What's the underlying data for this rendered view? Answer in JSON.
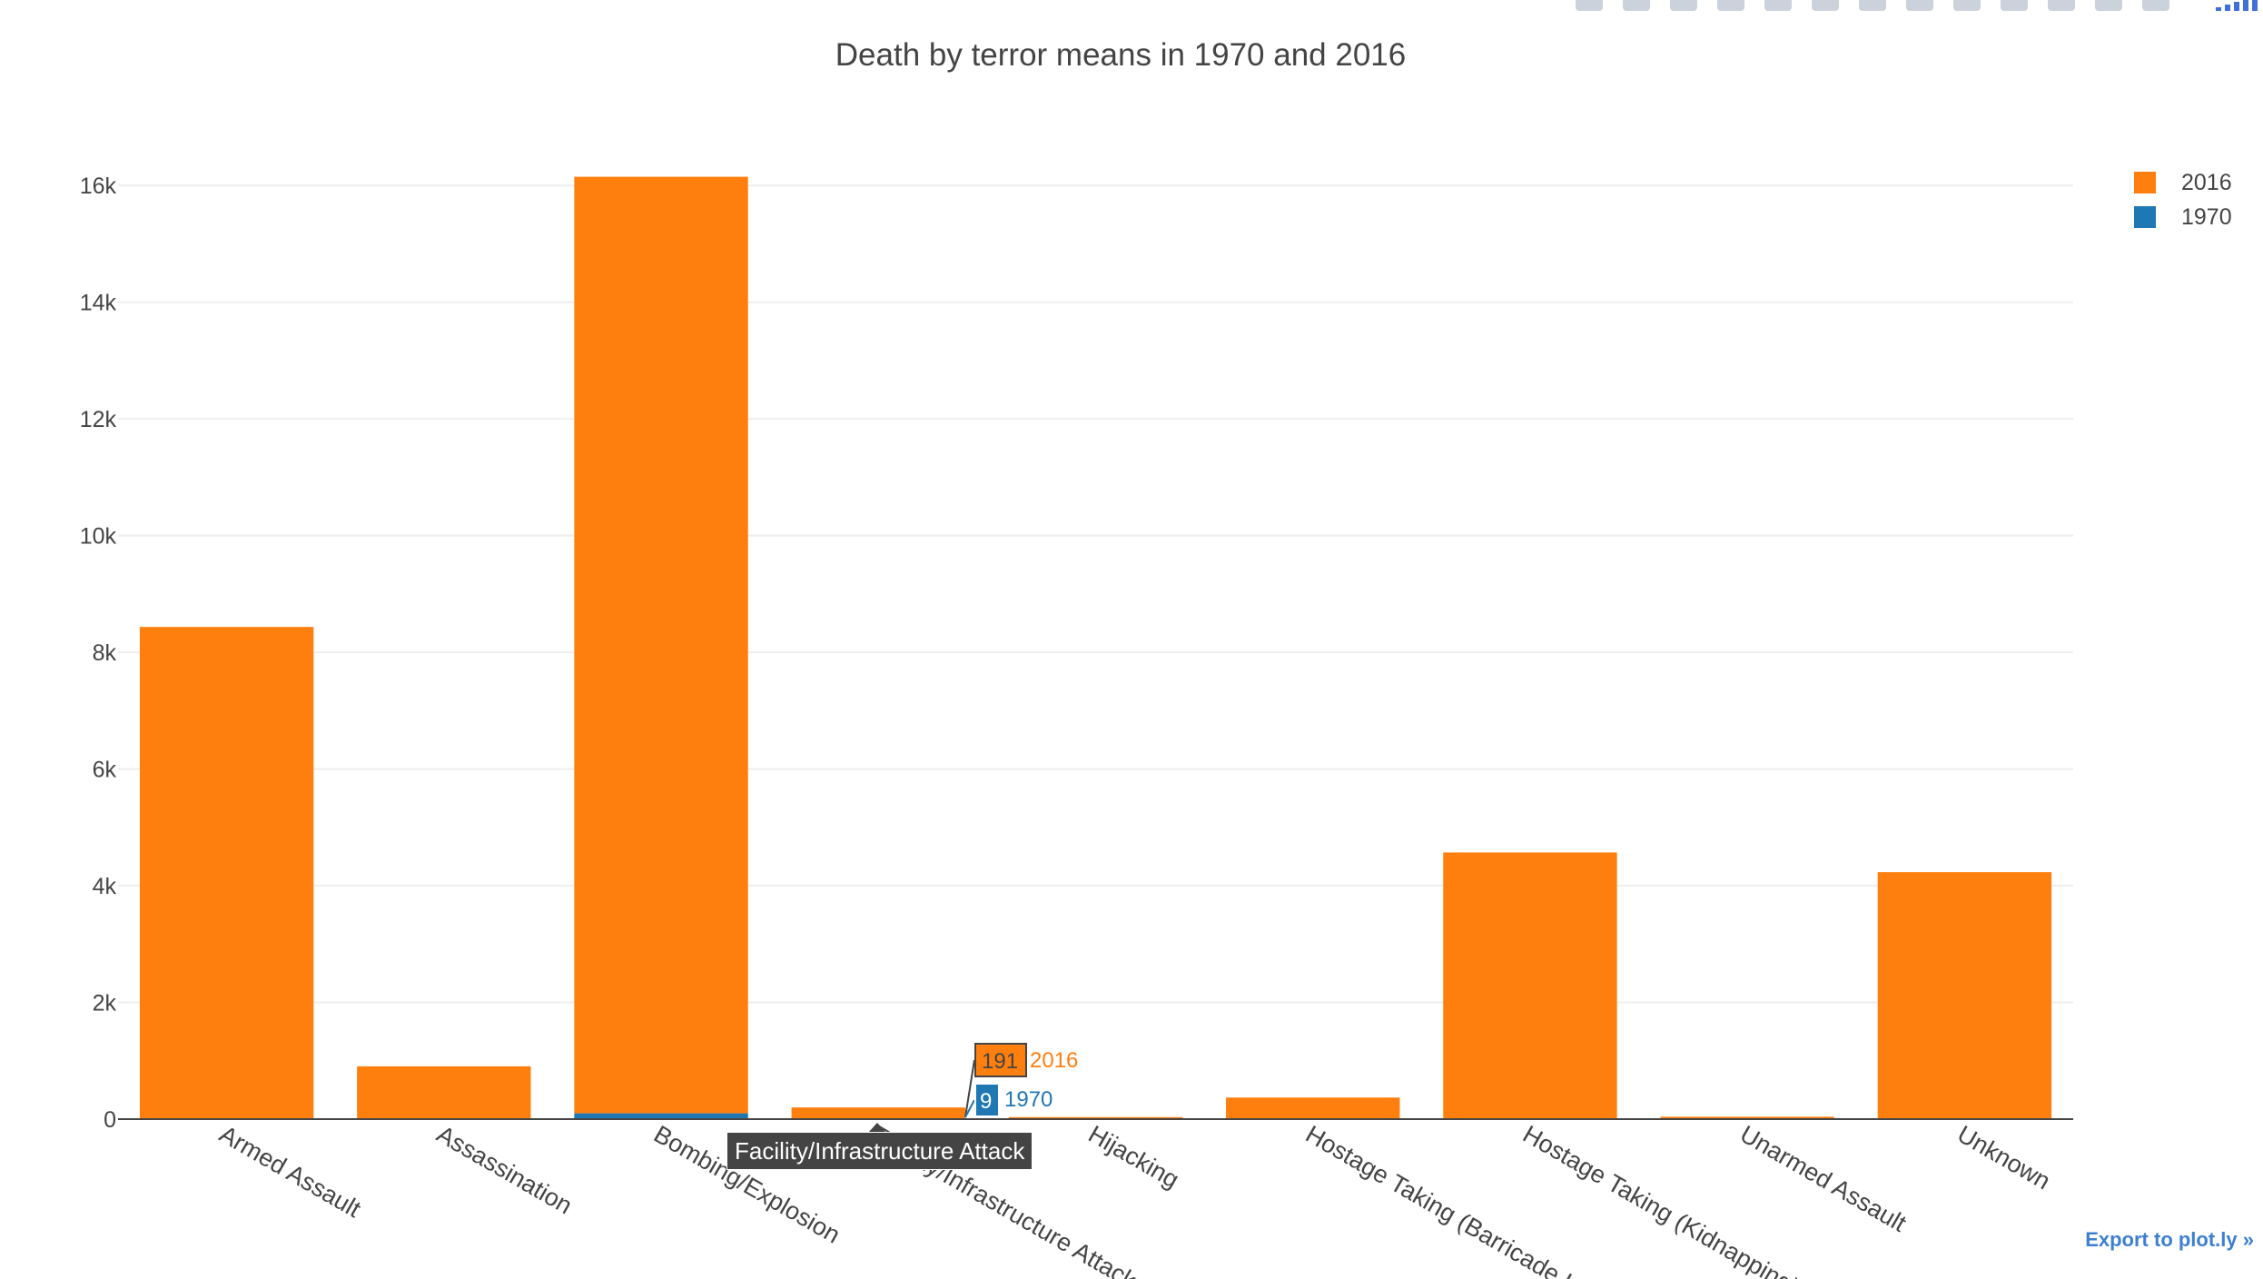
{
  "chart_data": {
    "type": "bar",
    "barmode": "stack",
    "title": "Death by terror means in 1970 and 2016",
    "xlabel": "",
    "ylabel": "",
    "categories": [
      "Armed Assault",
      "Assassination",
      "Bombing/Explosion",
      "Facility/Infrastructure Attack",
      "Hijacking",
      "Hostage Taking (Barricade Incident)",
      "Hostage Taking (Kidnapping)",
      "Unarmed Assault",
      "Unknown"
    ],
    "series": [
      {
        "name": "1970",
        "color": "#1f77b4",
        "values": [
          15,
          5,
          100,
          9,
          0,
          0,
          0,
          1,
          2
        ]
      },
      {
        "name": "2016",
        "color": "#ff7f0e",
        "values": [
          8420,
          900,
          16050,
          191,
          35,
          370,
          4570,
          40,
          4230
        ]
      }
    ],
    "ylim": [
      0,
      17000
    ],
    "yticks": [
      0,
      2000,
      4000,
      6000,
      8000,
      10000,
      12000,
      14000,
      16000
    ],
    "ytick_labels": [
      "0",
      "2k",
      "4k",
      "6k",
      "8k",
      "10k",
      "12k",
      "14k",
      "16k"
    ],
    "grid": true,
    "legend_position": "top-right",
    "hover": {
      "category": "Facility/Infrastructure Attack",
      "values": [
        {
          "series": "2016",
          "value": "191"
        },
        {
          "series": "1970",
          "value": "9"
        }
      ]
    }
  },
  "ui": {
    "export_link": "Export to plot.ly »"
  }
}
